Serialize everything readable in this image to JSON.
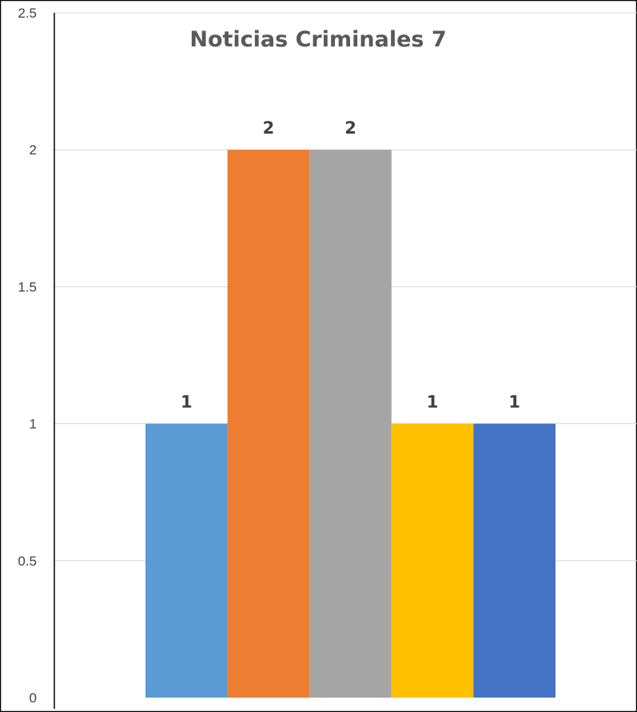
{
  "chart_data": {
    "type": "bar",
    "title": "Noticias Criminales 7",
    "categories": [
      "",
      "",
      "",
      "",
      ""
    ],
    "values": [
      1,
      2,
      2,
      1,
      1
    ],
    "data_labels": [
      "1",
      "2",
      "2",
      "1",
      "1"
    ],
    "colors": [
      "#5B9BD5",
      "#ED7D31",
      "#A5A5A5",
      "#FFC000",
      "#4472C4"
    ],
    "ylim": [
      0,
      2.5
    ],
    "yticks": [
      0,
      0.5,
      1,
      1.5,
      2,
      2.5
    ],
    "ytick_labels": [
      "0",
      "0.5",
      "1",
      "1.5",
      "2",
      "2.5"
    ],
    "grid": true,
    "legend": "none",
    "xlabel": "",
    "ylabel": ""
  }
}
